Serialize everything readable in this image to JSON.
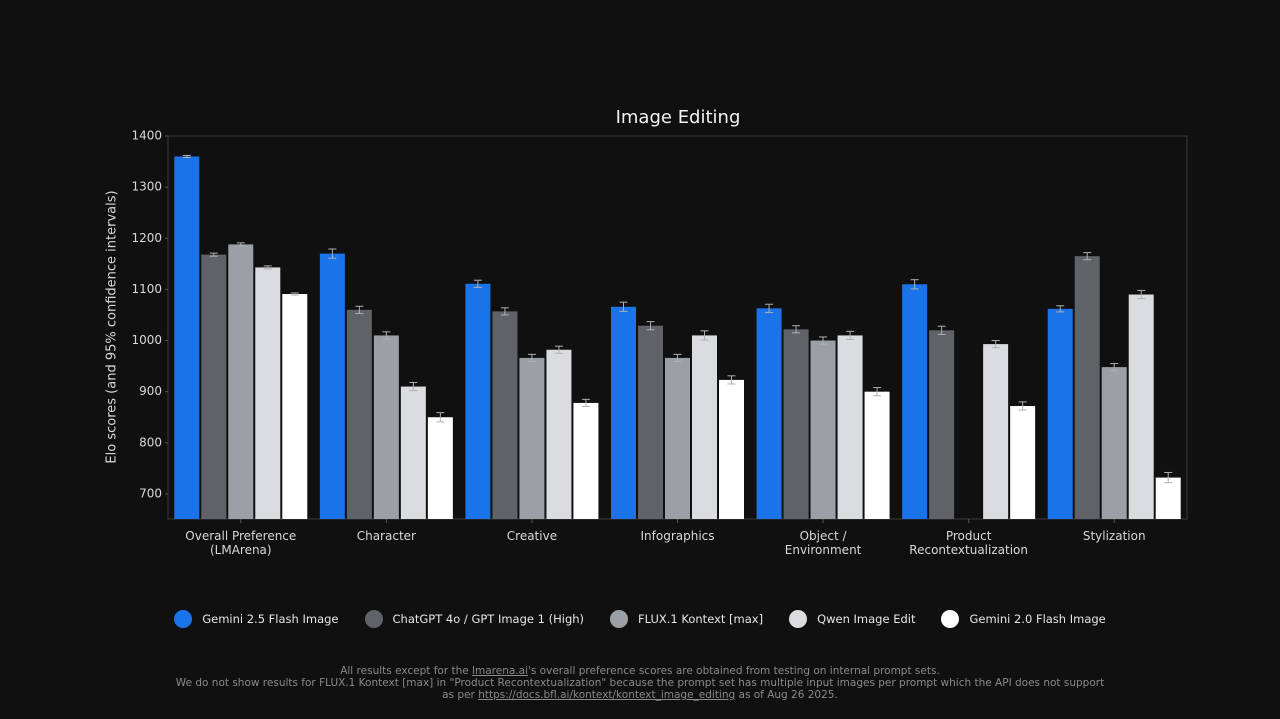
{
  "chart_data": {
    "type": "bar",
    "title": "Image Editing",
    "y_label": "Elo scores (and 95% confidence intervals)",
    "categories": [
      "Overall Preference\n(LMArena)",
      "Character",
      "Creative",
      "Infographics",
      "Object /\nEnvironment",
      "Product\nRecontextualization",
      "Stylization"
    ],
    "series": [
      {
        "name": "Gemini 2.5 Flash Image",
        "color": "#1a73e8",
        "values": [
          1360,
          1170,
          1111,
          1066,
          1063,
          1110,
          1062
        ],
        "errors": [
          2,
          9,
          7,
          9,
          8,
          9,
          6
        ]
      },
      {
        "name": "ChatGPT 4o / GPT Image 1 (High)",
        "color": "#5f6368",
        "values": [
          1168,
          1060,
          1057,
          1029,
          1022,
          1020,
          1165
        ],
        "errors": [
          3,
          7,
          7,
          8,
          7,
          8,
          7
        ]
      },
      {
        "name": "FLUX.1 Kontext [max]",
        "color": "#9aa0a6",
        "values": [
          1188,
          1010,
          966,
          966,
          1000,
          null,
          948
        ],
        "errors": [
          3,
          7,
          7,
          7,
          7,
          null,
          7
        ]
      },
      {
        "name": "Qwen Image Edit",
        "color": "#dadce0",
        "values": [
          1143,
          910,
          982,
          1010,
          1010,
          993,
          1090
        ],
        "errors": [
          3,
          8,
          7,
          9,
          8,
          7,
          8
        ]
      },
      {
        "name": "Gemini 2.0 Flash Image",
        "color": "#ffffff",
        "values": [
          1091,
          850,
          878,
          923,
          900,
          872,
          732
        ],
        "errors": [
          2,
          9,
          7,
          8,
          8,
          8,
          10
        ]
      }
    ],
    "ylim": [
      651,
      1400
    ],
    "yticks": [
      700,
      800,
      900,
      1000,
      1100,
      1200,
      1300,
      1400
    ],
    "footnotes": [
      [
        "All results except for the ",
        "lmarena.ai",
        "'s overall preference scores are obtained from testing on internal prompt sets."
      ],
      [
        "We do not show results for FLUX.1 Kontext [max] in \"Product Recontextualization\" because the prompt set has multiple input images per prompt which the API does not support"
      ],
      [
        "as per ",
        "https://docs.bfl.ai/kontext/kontext_image_editing",
        " as of Aug 26 2025."
      ]
    ]
  }
}
